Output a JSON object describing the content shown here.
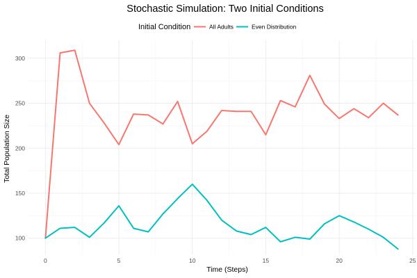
{
  "chart_data": {
    "type": "line",
    "title": "Stochastic Simulation: Two Initial Conditions",
    "xlabel": "Time (Steps)",
    "ylabel": "Total Population Size",
    "xlim": [
      -1.2,
      25.2
    ],
    "ylim": [
      82,
      320
    ],
    "x_ticks": [
      0,
      5,
      10,
      15,
      20,
      25
    ],
    "y_ticks": [
      100,
      150,
      200,
      250,
      300
    ],
    "grid": true,
    "legend": {
      "title": "Initial Condition",
      "position": "top"
    },
    "x": [
      0,
      1,
      2,
      3,
      4,
      5,
      6,
      7,
      8,
      9,
      10,
      11,
      12,
      13,
      14,
      15,
      16,
      17,
      18,
      19,
      20,
      21,
      22,
      23,
      24
    ],
    "series": [
      {
        "name": "All Adults",
        "color": "#F8766D",
        "values": [
          100,
          306,
          309,
          250,
          228,
          204,
          238,
          237,
          227,
          252,
          205,
          219,
          242,
          241,
          241,
          215,
          253,
          246,
          281,
          249,
          233,
          244,
          234,
          250,
          237
        ]
      },
      {
        "name": "Even Distribution",
        "color": "#00BFC4",
        "values": [
          100,
          111,
          112,
          101,
          117,
          136,
          111,
          107,
          127,
          144,
          160,
          142,
          120,
          108,
          104,
          112,
          96,
          101,
          99,
          116,
          125,
          118,
          110,
          101,
          88
        ]
      }
    ]
  }
}
